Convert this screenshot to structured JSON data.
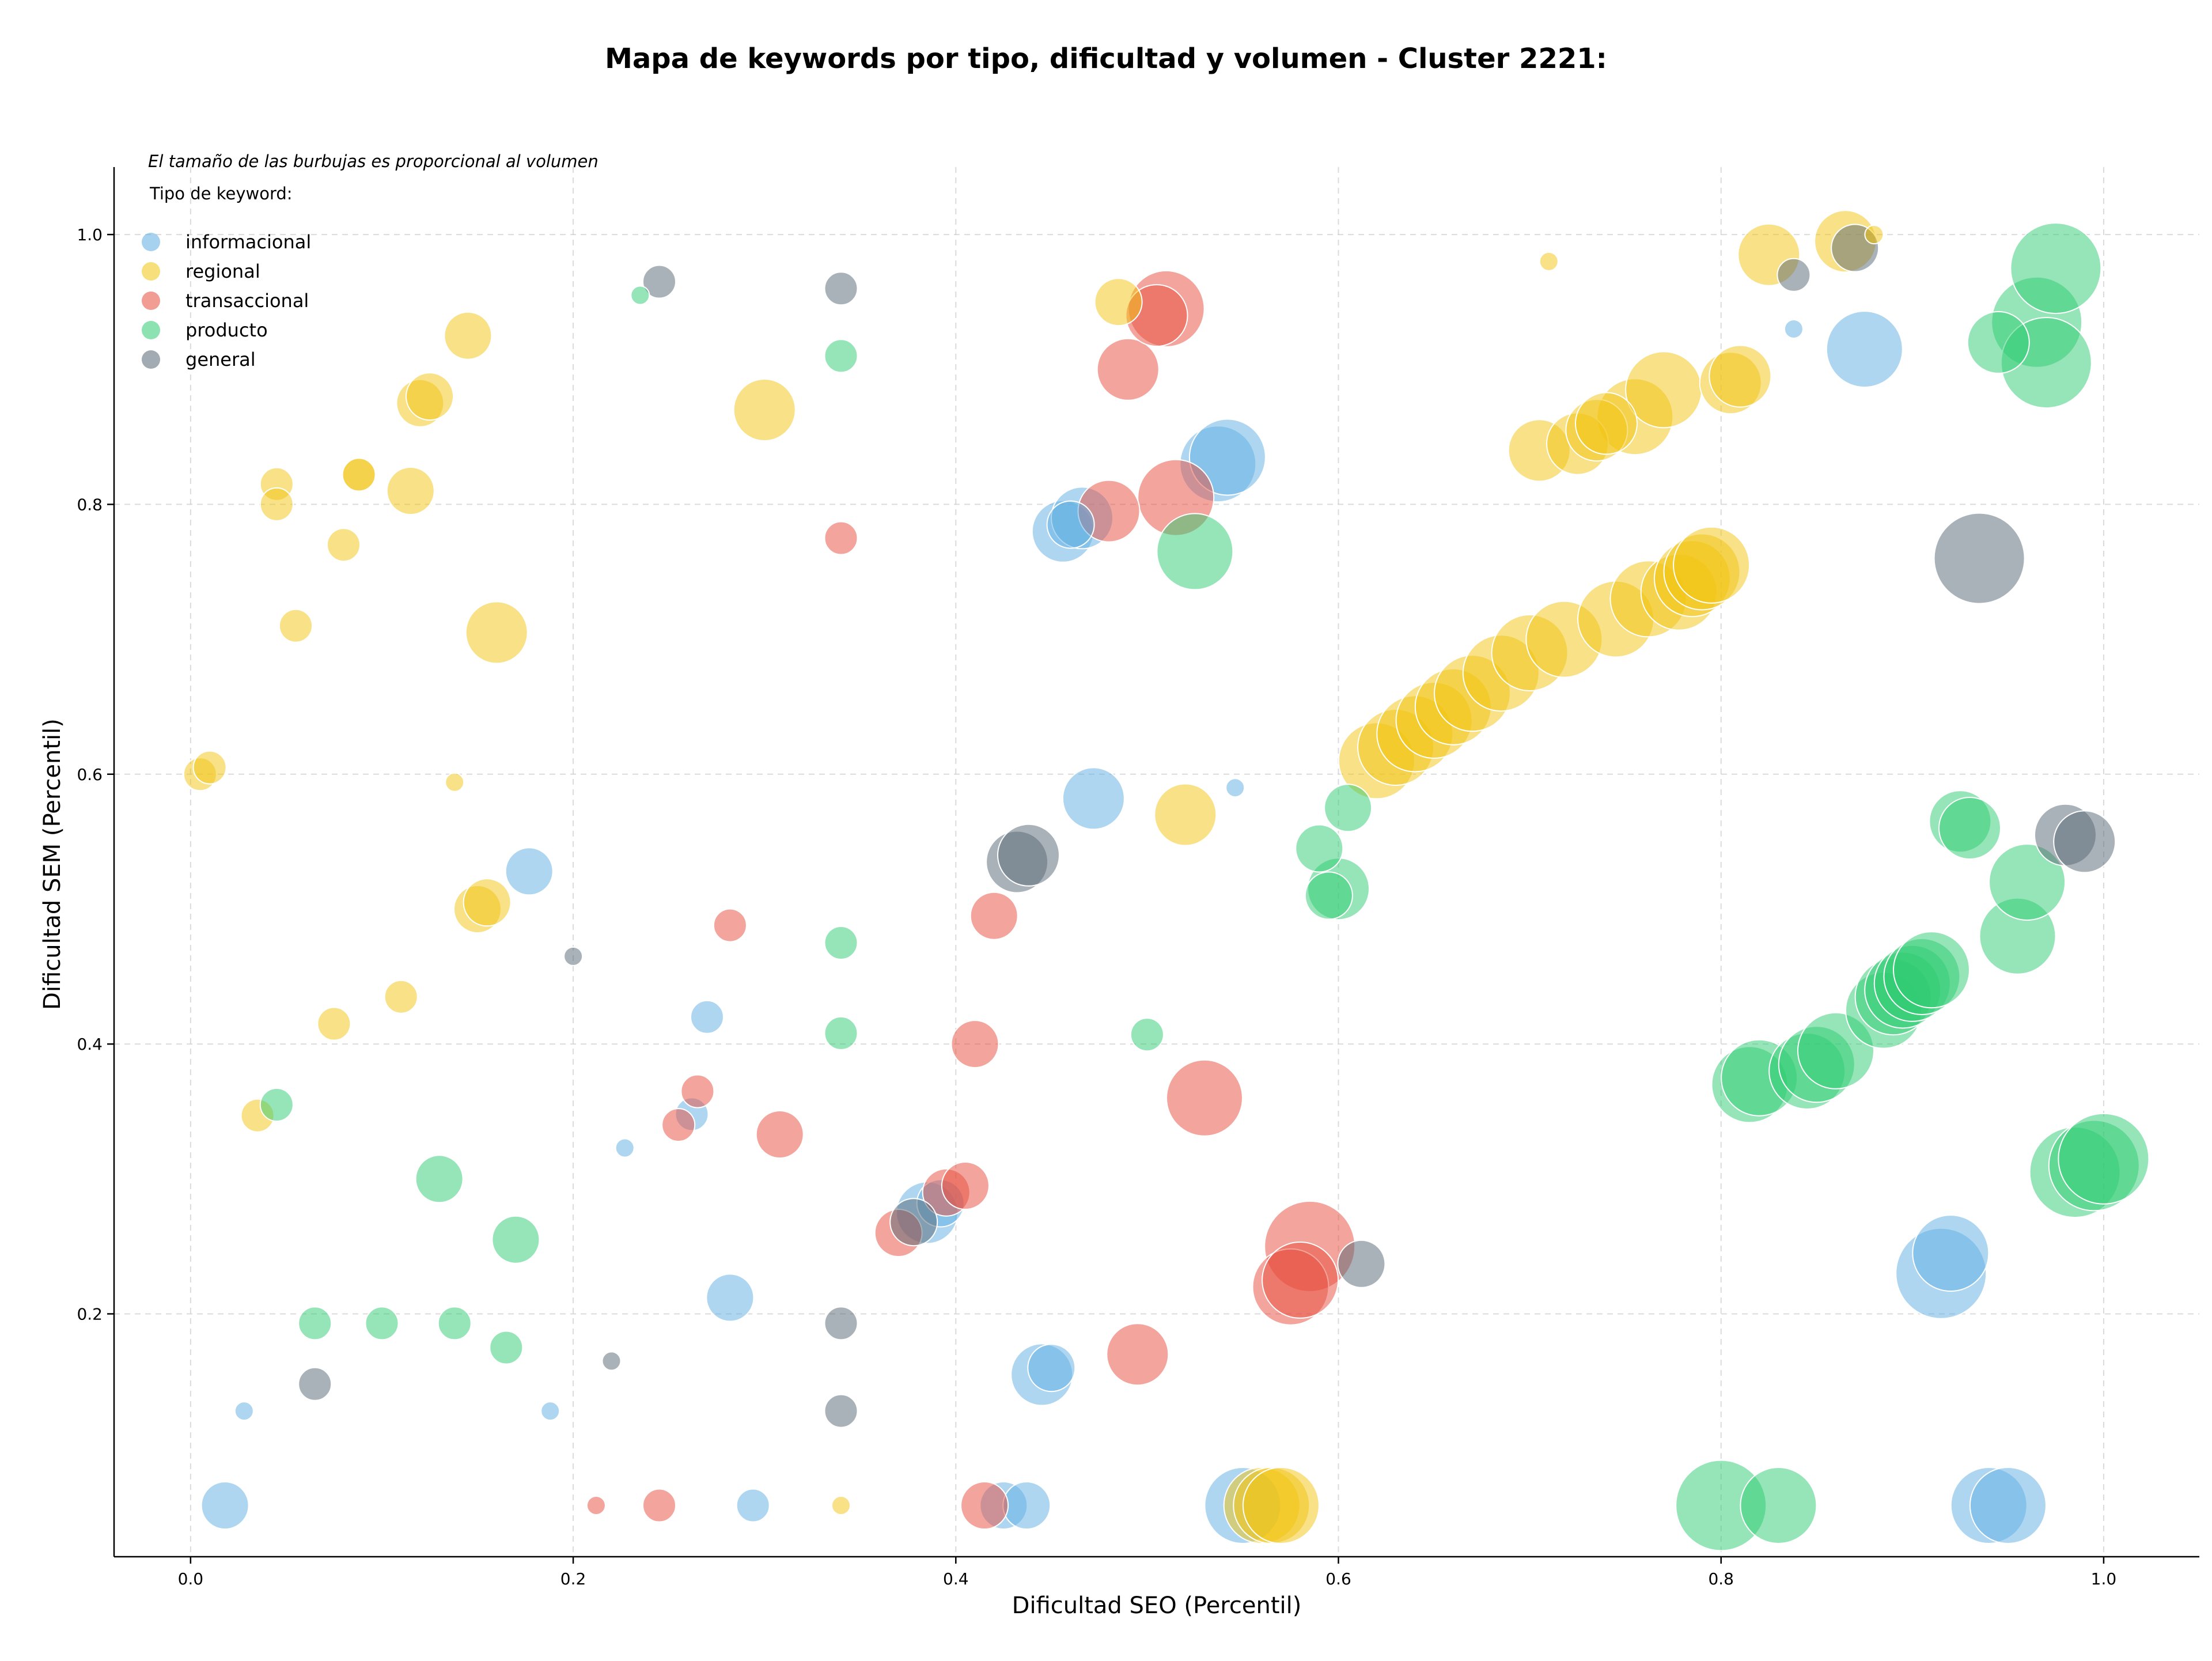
{
  "chart_data": {
    "type": "scatter",
    "title": "Mapa de keywords por tipo, dificultad y volumen - Cluster 2221:",
    "xlabel": "Dificultad SEO (Percentil)",
    "ylabel": "Dificultad SEM (Percentil)",
    "xlim": [
      -0.04,
      1.05
    ],
    "ylim": [
      0.02,
      1.05
    ],
    "xticks": [
      "0.0",
      "0.2",
      "0.4",
      "0.6",
      "0.8",
      "1.0"
    ],
    "yticks": [
      "0.2",
      "0.4",
      "0.6",
      "0.8",
      "1.0"
    ],
    "grid": true,
    "note": "El tamaño de las burbujas es proporcional al volumen",
    "legend_title": "Tipo de keyword:",
    "legend_position": "top-left",
    "series": [
      {
        "name": "informacional",
        "color": "#5dade2",
        "points": [
          [
            0.018,
            0.058,
            3
          ],
          [
            0.028,
            0.128,
            1
          ],
          [
            0.177,
            0.528,
            3
          ],
          [
            0.188,
            0.128,
            1
          ],
          [
            0.227,
            0.323,
            1
          ],
          [
            0.262,
            0.348,
            2
          ],
          [
            0.27,
            0.42,
            2
          ],
          [
            0.282,
            0.212,
            3
          ],
          [
            0.294,
            0.058,
            2
          ],
          [
            0.385,
            0.275,
            4
          ],
          [
            0.392,
            0.282,
            3
          ],
          [
            0.425,
            0.058,
            3
          ],
          [
            0.437,
            0.058,
            3
          ],
          [
            0.445,
            0.155,
            4
          ],
          [
            0.45,
            0.16,
            3
          ],
          [
            0.456,
            0.78,
            4
          ],
          [
            0.46,
            0.785,
            3
          ],
          [
            0.466,
            0.79,
            4
          ],
          [
            0.472,
            0.582,
            4
          ],
          [
            0.537,
            0.83,
            5
          ],
          [
            0.542,
            0.835,
            5
          ],
          [
            0.546,
            0.59,
            1
          ],
          [
            0.55,
            0.058,
            5
          ],
          [
            0.838,
            0.93,
            1
          ],
          [
            0.875,
            0.915,
            5
          ],
          [
            0.915,
            0.23,
            6
          ],
          [
            0.92,
            0.245,
            5
          ],
          [
            0.94,
            0.058,
            5
          ],
          [
            0.95,
            0.058,
            5
          ]
        ]
      },
      {
        "name": "regional",
        "color": "#f1c40f",
        "points": [
          [
            0.005,
            0.6,
            2
          ],
          [
            0.01,
            0.605,
            2
          ],
          [
            0.035,
            0.347,
            2
          ],
          [
            0.045,
            0.815,
            2
          ],
          [
            0.045,
            0.8,
            2
          ],
          [
            0.055,
            0.71,
            2
          ],
          [
            0.075,
            0.415,
            2
          ],
          [
            0.08,
            0.77,
            2
          ],
          [
            0.088,
            0.822,
            2
          ],
          [
            0.088,
            0.822,
            2
          ],
          [
            0.11,
            0.435,
            2
          ],
          [
            0.115,
            0.81,
            3
          ],
          [
            0.12,
            0.875,
            3
          ],
          [
            0.125,
            0.88,
            3
          ],
          [
            0.138,
            0.594,
            1
          ],
          [
            0.145,
            0.925,
            3
          ],
          [
            0.15,
            0.5,
            3
          ],
          [
            0.155,
            0.505,
            3
          ],
          [
            0.16,
            0.705,
            4
          ],
          [
            0.3,
            0.87,
            4
          ],
          [
            0.34,
            0.058,
            1
          ],
          [
            0.485,
            0.95,
            3
          ],
          [
            0.52,
            0.57,
            4
          ],
          [
            0.56,
            0.058,
            5
          ],
          [
            0.565,
            0.058,
            5
          ],
          [
            0.57,
            0.058,
            5
          ],
          [
            0.62,
            0.61,
            5
          ],
          [
            0.63,
            0.62,
            5
          ],
          [
            0.64,
            0.63,
            5
          ],
          [
            0.65,
            0.64,
            5
          ],
          [
            0.66,
            0.65,
            5
          ],
          [
            0.67,
            0.66,
            5
          ],
          [
            0.685,
            0.675,
            5
          ],
          [
            0.7,
            0.69,
            5
          ],
          [
            0.705,
            0.84,
            4
          ],
          [
            0.71,
            0.98,
            1
          ],
          [
            0.718,
            0.7,
            5
          ],
          [
            0.725,
            0.845,
            4
          ],
          [
            0.735,
            0.855,
            4
          ],
          [
            0.74,
            0.86,
            4
          ],
          [
            0.745,
            0.715,
            5
          ],
          [
            0.755,
            0.865,
            5
          ],
          [
            0.762,
            0.73,
            5
          ],
          [
            0.77,
            0.885,
            5
          ],
          [
            0.778,
            0.735,
            5
          ],
          [
            0.785,
            0.745,
            5
          ],
          [
            0.79,
            0.75,
            5
          ],
          [
            0.795,
            0.755,
            5
          ],
          [
            0.805,
            0.89,
            4
          ],
          [
            0.81,
            0.895,
            4
          ],
          [
            0.825,
            0.985,
            4
          ],
          [
            0.865,
            0.995,
            4
          ],
          [
            0.88,
            1.0,
            1
          ]
        ]
      },
      {
        "name": "transaccional",
        "color": "#e74c3c",
        "points": [
          [
            0.212,
            0.058,
            1
          ],
          [
            0.245,
            0.058,
            2
          ],
          [
            0.255,
            0.34,
            2
          ],
          [
            0.265,
            0.365,
            2
          ],
          [
            0.282,
            0.488,
            2
          ],
          [
            0.308,
            0.333,
            3
          ],
          [
            0.34,
            0.775,
            2
          ],
          [
            0.37,
            0.26,
            3
          ],
          [
            0.395,
            0.29,
            3
          ],
          [
            0.405,
            0.295,
            3
          ],
          [
            0.41,
            0.4,
            3
          ],
          [
            0.415,
            0.058,
            3
          ],
          [
            0.42,
            0.495,
            3
          ],
          [
            0.48,
            0.795,
            4
          ],
          [
            0.49,
            0.9,
            4
          ],
          [
            0.495,
            0.17,
            4
          ],
          [
            0.505,
            0.94,
            4
          ],
          [
            0.51,
            0.945,
            5
          ],
          [
            0.515,
            0.805,
            5
          ],
          [
            0.53,
            0.36,
            5
          ],
          [
            0.575,
            0.22,
            5
          ],
          [
            0.58,
            0.225,
            5
          ],
          [
            0.585,
            0.25,
            6
          ]
        ]
      },
      {
        "name": "producto",
        "color": "#2ecc71",
        "points": [
          [
            0.045,
            0.355,
            2
          ],
          [
            0.065,
            0.193,
            2
          ],
          [
            0.1,
            0.193,
            2
          ],
          [
            0.13,
            0.3,
            3
          ],
          [
            0.138,
            0.193,
            2
          ],
          [
            0.165,
            0.175,
            2
          ],
          [
            0.17,
            0.255,
            3
          ],
          [
            0.235,
            0.955,
            1
          ],
          [
            0.34,
            0.91,
            2
          ],
          [
            0.34,
            0.475,
            2
          ],
          [
            0.34,
            0.408,
            2
          ],
          [
            0.5,
            0.407,
            2
          ],
          [
            0.525,
            0.765,
            5
          ],
          [
            0.59,
            0.545,
            3
          ],
          [
            0.595,
            0.51,
            3
          ],
          [
            0.6,
            0.515,
            4
          ],
          [
            0.605,
            0.575,
            3
          ],
          [
            0.8,
            0.058,
            6
          ],
          [
            0.815,
            0.37,
            5
          ],
          [
            0.82,
            0.375,
            5
          ],
          [
            0.83,
            0.058,
            5
          ],
          [
            0.845,
            0.38,
            5
          ],
          [
            0.85,
            0.385,
            5
          ],
          [
            0.86,
            0.395,
            5
          ],
          [
            0.885,
            0.425,
            5
          ],
          [
            0.89,
            0.435,
            5
          ],
          [
            0.895,
            0.44,
            5
          ],
          [
            0.9,
            0.445,
            5
          ],
          [
            0.905,
            0.45,
            5
          ],
          [
            0.91,
            0.455,
            5
          ],
          [
            0.925,
            0.565,
            4
          ],
          [
            0.93,
            0.56,
            4
          ],
          [
            0.945,
            0.92,
            4
          ],
          [
            0.955,
            0.48,
            5
          ],
          [
            0.96,
            0.52,
            5
          ],
          [
            0.965,
            0.935,
            6
          ],
          [
            0.97,
            0.905,
            6
          ],
          [
            0.975,
            0.975,
            6
          ],
          [
            0.985,
            0.305,
            6
          ],
          [
            0.995,
            0.31,
            6
          ],
          [
            1.0,
            0.315,
            6
          ]
        ]
      },
      {
        "name": "general",
        "color": "#566573",
        "points": [
          [
            0.065,
            0.148,
            2
          ],
          [
            0.2,
            0.465,
            1
          ],
          [
            0.22,
            0.165,
            1
          ],
          [
            0.245,
            0.965,
            2
          ],
          [
            0.34,
            0.96,
            2
          ],
          [
            0.34,
            0.193,
            2
          ],
          [
            0.34,
            0.128,
            2
          ],
          [
            0.378,
            0.268,
            3
          ],
          [
            0.432,
            0.535,
            4
          ],
          [
            0.438,
            0.54,
            4
          ],
          [
            0.612,
            0.237,
            3
          ],
          [
            0.838,
            0.97,
            2
          ],
          [
            0.87,
            0.99,
            3
          ],
          [
            0.935,
            0.76,
            6
          ],
          [
            0.98,
            0.555,
            4
          ],
          [
            0.99,
            0.55,
            4
          ]
        ]
      }
    ]
  }
}
